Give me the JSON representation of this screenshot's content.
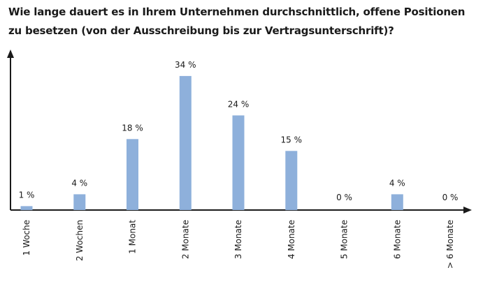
{
  "chart_data": {
    "type": "bar",
    "title": "Wie lange dauert es in Ihrem Unternehmen durchschnittlich, offene Positionen zu besetzen (von der Ausschreibung bis zur Vertragsunterschrift)?",
    "categories": [
      "1 Woche",
      "2 Wochen",
      "1 Monat",
      "2 Monate",
      "3 Monate",
      "4 Monate",
      "5 Monate",
      "6 Monate",
      "> 6 Monate"
    ],
    "values": [
      1,
      4,
      18,
      34,
      24,
      15,
      0,
      4,
      0
    ],
    "value_labels": [
      "1 %",
      "4 %",
      "18 %",
      "34 %",
      "24 %",
      "15 %",
      "0 %",
      "4 %",
      "0 %"
    ],
    "unit": "%",
    "ylim": [
      0,
      38
    ],
    "grid": false,
    "bar_color": "#8eb0db",
    "axis_color": "#1a1a1a"
  }
}
